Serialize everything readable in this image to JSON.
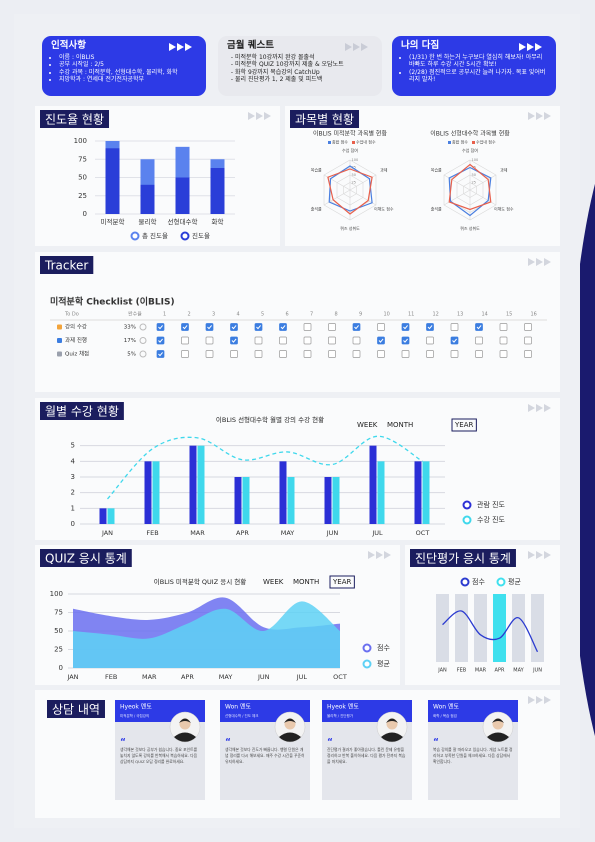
{
  "cards": [
    {
      "title": "인적사항",
      "items": [
        "이름 : 이BLIS",
        "공부 시작일 : 2/5",
        "수강 과목 : 미적분학, 선형대수학, 물리학, 화학",
        "지망학과 : 연세대 전기전자공학부"
      ]
    },
    {
      "title": "금월 퀘스트",
      "items": [
        "미적분학 10강까지 완강 몰출석",
        "미적분학 QUIZ 10강까지 제출 & 오답노트",
        "화학 9강까지 복습강의 CatchUp",
        "물리 진단평가 1, 2 제출 및 피드백"
      ]
    },
    {
      "title": "나의 다짐",
      "items": [
        "(1/31) 한 번 하는거 누구보다 열심히 해보자! 아무리 바빠도 하루 수강 시간 5시간 확보!",
        "(2/28) 점진적으로 공부시간 늘려 나가자. 목표 잊어버리지 말자!"
      ]
    }
  ],
  "sections": {
    "progress": "진도율 현황",
    "subjects": "과목별 현황",
    "tracker": "Tracker",
    "monthly": "월별 수강 현황",
    "quiz": "QUIZ 응시 통계",
    "diagnostic": "진단평가 응시 통계",
    "counsel": "상담 내역"
  },
  "chart_data": [
    {
      "type": "bar",
      "categories": [
        "미적분학",
        "물리학",
        "선형대수학",
        "화학"
      ],
      "series": [
        {
          "name": "총 진도율",
          "color": "#5a82ee",
          "values": [
            100,
            75,
            92,
            75
          ]
        },
        {
          "name": "진도율",
          "color": "#2a3ed8",
          "values": [
            90,
            40,
            50,
            63
          ]
        }
      ],
      "ylim": [
        0,
        100
      ],
      "yticks": [
        0,
        25,
        50,
        75,
        100
      ],
      "grid": true
    },
    {
      "type": "radar",
      "title": "이BLIS 미적분학 과목별 현황",
      "categories": [
        "수업 참여",
        "과제",
        "이해도 점수",
        "퀴즈 성취도",
        "출석률",
        "복습률"
      ],
      "series": [
        {
          "name": "종합 점수",
          "color": "#4a7fe0",
          "values": [
            80,
            75,
            85,
            70,
            80,
            75
          ]
        },
        {
          "name": "수업내 점수",
          "color": "#e8604c",
          "values": [
            70,
            85,
            70,
            80,
            65,
            85
          ]
        }
      ],
      "rlim": [
        0,
        100
      ],
      "rticks": [
        25,
        50,
        75,
        100
      ]
    },
    {
      "type": "radar",
      "title": "이BLIS 선형대수학 과목별 현황",
      "categories": [
        "수업 참여",
        "과제",
        "이해도 점수",
        "퀴즈 성취도",
        "출석률",
        "복습률"
      ],
      "series": [
        {
          "name": "종합 점수",
          "color": "#4a7fe0",
          "values": [
            75,
            80,
            70,
            85,
            75,
            80
          ]
        },
        {
          "name": "수업내 점수",
          "color": "#e8604c",
          "values": [
            85,
            70,
            80,
            65,
            80,
            70
          ]
        }
      ],
      "rlim": [
        0,
        100
      ],
      "rticks": [
        25,
        50,
        75,
        100
      ]
    },
    {
      "type": "bar-line",
      "title": "이BLIS 선형대수학 월별 강의 수강 현황",
      "buttons": [
        "WEEK",
        "MONTH",
        "YEAR"
      ],
      "active": 2,
      "categories": [
        "JAN",
        "FEB",
        "MAR",
        "APR",
        "MAY",
        "JUN",
        "JUL",
        "OCT"
      ],
      "series": [
        {
          "name": "관람 진도",
          "color": "#2b2fd6",
          "values": [
            1,
            4,
            5,
            3,
            4,
            3,
            5,
            4
          ]
        },
        {
          "name": "수강 진도",
          "color": "#3fd8ec",
          "values": [
            1,
            4,
            5,
            3,
            3,
            3,
            4,
            4
          ]
        }
      ],
      "trend": {
        "color": "#3fd8ec",
        "values": [
          1.6,
          4.8,
          5.5,
          4.1,
          4.6,
          3.8,
          5.6,
          4
        ]
      },
      "ylim": [
        0,
        6
      ],
      "yticks": [
        0,
        1,
        2,
        3,
        4,
        5
      ],
      "grid": true,
      "legend": "right"
    },
    {
      "type": "area",
      "title": "이BLIS 미적분학 QUIZ 응시 현황",
      "buttons": [
        "WEEK",
        "MONTH",
        "YEAR"
      ],
      "active": 2,
      "categories": [
        "JAN",
        "FEB",
        "MAR",
        "APR",
        "MAY",
        "JUN",
        "JUL",
        "OCT"
      ],
      "series": [
        {
          "name": "점수",
          "color": "#6a6ff0",
          "values": [
            80,
            70,
            65,
            75,
            95,
            55,
            55,
            60
          ]
        },
        {
          "name": "평균",
          "color": "#5ed1f5",
          "values": [
            50,
            45,
            40,
            60,
            80,
            50,
            90,
            50
          ]
        }
      ],
      "ylim": [
        0,
        100
      ],
      "yticks": [
        0,
        25,
        50,
        75,
        100
      ],
      "grid": true,
      "legend": "right"
    },
    {
      "type": "line",
      "categories": [
        "JAN",
        "FEB",
        "MAR",
        "APR",
        "MAY",
        "JUN"
      ],
      "series": [
        {
          "name": "점수",
          "color": "#2b3bd0",
          "values": [
            55,
            75,
            40,
            35,
            65,
            15
          ]
        }
      ],
      "highlight": {
        "name": "평균",
        "color": "#3fe0ee",
        "index": 3
      },
      "ylim": [
        0,
        100
      ],
      "legend": "top"
    }
  ],
  "tracker": {
    "title": "미적분학 Checklist (이BLIS)",
    "headers": [
      "To Do",
      "완수율"
    ],
    "days": [
      1,
      2,
      3,
      4,
      5,
      6,
      7,
      8,
      9,
      10,
      11,
      12,
      13,
      14,
      15,
      16
    ],
    "rows": [
      {
        "task": "강의 수강",
        "rate": "33%",
        "checks": [
          true,
          true,
          true,
          true,
          true,
          true,
          false,
          false,
          true,
          false,
          true,
          true,
          false,
          true,
          false,
          false
        ]
      },
      {
        "task": "과제 진행",
        "rate": "17%",
        "checks": [
          true,
          false,
          false,
          true,
          false,
          false,
          false,
          false,
          false,
          true,
          true,
          false,
          true,
          false,
          false,
          false
        ]
      },
      {
        "task": "Quiz 채점",
        "rate": "5%",
        "checks": [
          true,
          false,
          false,
          false,
          false,
          false,
          false,
          false,
          false,
          false,
          false,
          false,
          false,
          false,
          false,
          false
        ]
      }
    ]
  },
  "counsel": [
    {
      "mentor": "Hyeok 멘토",
      "subtitle": "미적분학 / 국립강의",
      "text": "생각해본 것보다 공부가 쉽습니다. 중요 포인트를 놓치지 않도록 강의를 반복해서 복습하세요. 다음 상담까지 QUIZ 오답 정리를 완료하세요."
    },
    {
      "mentor": "Won 멘토",
      "subtitle": "선형대수학 / 진도 체크",
      "text": "생각해본 것보다 진도가 빠릅니다. 행렬 단원은 개념 정리를 다시 해보세요. 매주 수강 시간을 꾸준히 유지하세요."
    },
    {
      "mentor": "Hyeok 멘토",
      "subtitle": "물리학 / 진단평가",
      "text": "진단평가 결과가 좋아졌습니다. 틀린 문제 유형을 정리하고 반복 풀이하세요. 다음 평가 전까지 복습을 마치세요."
    },
    {
      "mentor": "Won 멘토",
      "subtitle": "화학 / 복습 점검",
      "text": "복습 강의를 잘 따라오고 있습니다. 개념 노트를 정리하고 부족한 단원을 체크하세요. 다음 상담에서 확인합니다."
    }
  ]
}
